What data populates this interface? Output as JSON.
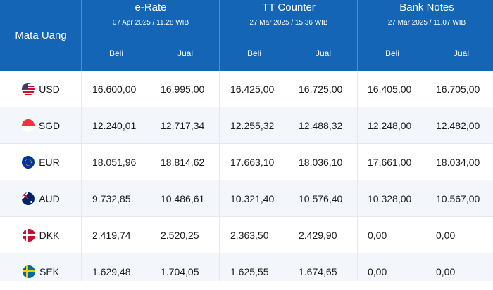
{
  "header": {
    "currency_label": "Mata Uang",
    "groups": [
      {
        "title": "e-Rate",
        "date": "07 Apr 2025 / 11.28 WIB",
        "buy": "Beli",
        "sell": "Jual"
      },
      {
        "title": "TT Counter",
        "date": "27 Mar 2025 / 15.36 WIB",
        "buy": "Beli",
        "sell": "Jual"
      },
      {
        "title": "Bank Notes",
        "date": "27 Mar 2025 / 11.07 WIB",
        "buy": "Beli",
        "sell": "Jual"
      }
    ]
  },
  "rows": [
    {
      "currency": "USD",
      "flag_icon": "us-flag-icon",
      "values": [
        "16.600,00",
        "16.995,00",
        "16.425,00",
        "16.725,00",
        "16.405,00",
        "16.705,00"
      ]
    },
    {
      "currency": "SGD",
      "flag_icon": "sg-flag-icon",
      "values": [
        "12.240,01",
        "12.717,34",
        "12.255,32",
        "12.488,32",
        "12.248,00",
        "12.482,00"
      ]
    },
    {
      "currency": "EUR",
      "flag_icon": "eu-flag-icon",
      "values": [
        "18.051,96",
        "18.814,62",
        "17.663,10",
        "18.036,10",
        "17.661,00",
        "18.034,00"
      ]
    },
    {
      "currency": "AUD",
      "flag_icon": "au-flag-icon",
      "values": [
        "9.732,85",
        "10.486,61",
        "10.321,40",
        "10.576,40",
        "10.328,00",
        "10.567,00"
      ]
    },
    {
      "currency": "DKK",
      "flag_icon": "dk-flag-icon",
      "values": [
        "2.419,74",
        "2.520,25",
        "2.363,50",
        "2.429,90",
        "0,00",
        "0,00"
      ]
    },
    {
      "currency": "SEK",
      "flag_icon": "se-flag-icon",
      "values": [
        "1.629,48",
        "1.704,05",
        "1.625,55",
        "1.674,65",
        "0,00",
        "0,00"
      ]
    }
  ],
  "colors": {
    "header_bg": "#1565b7",
    "row_alt_bg": "#f3f6fb"
  }
}
